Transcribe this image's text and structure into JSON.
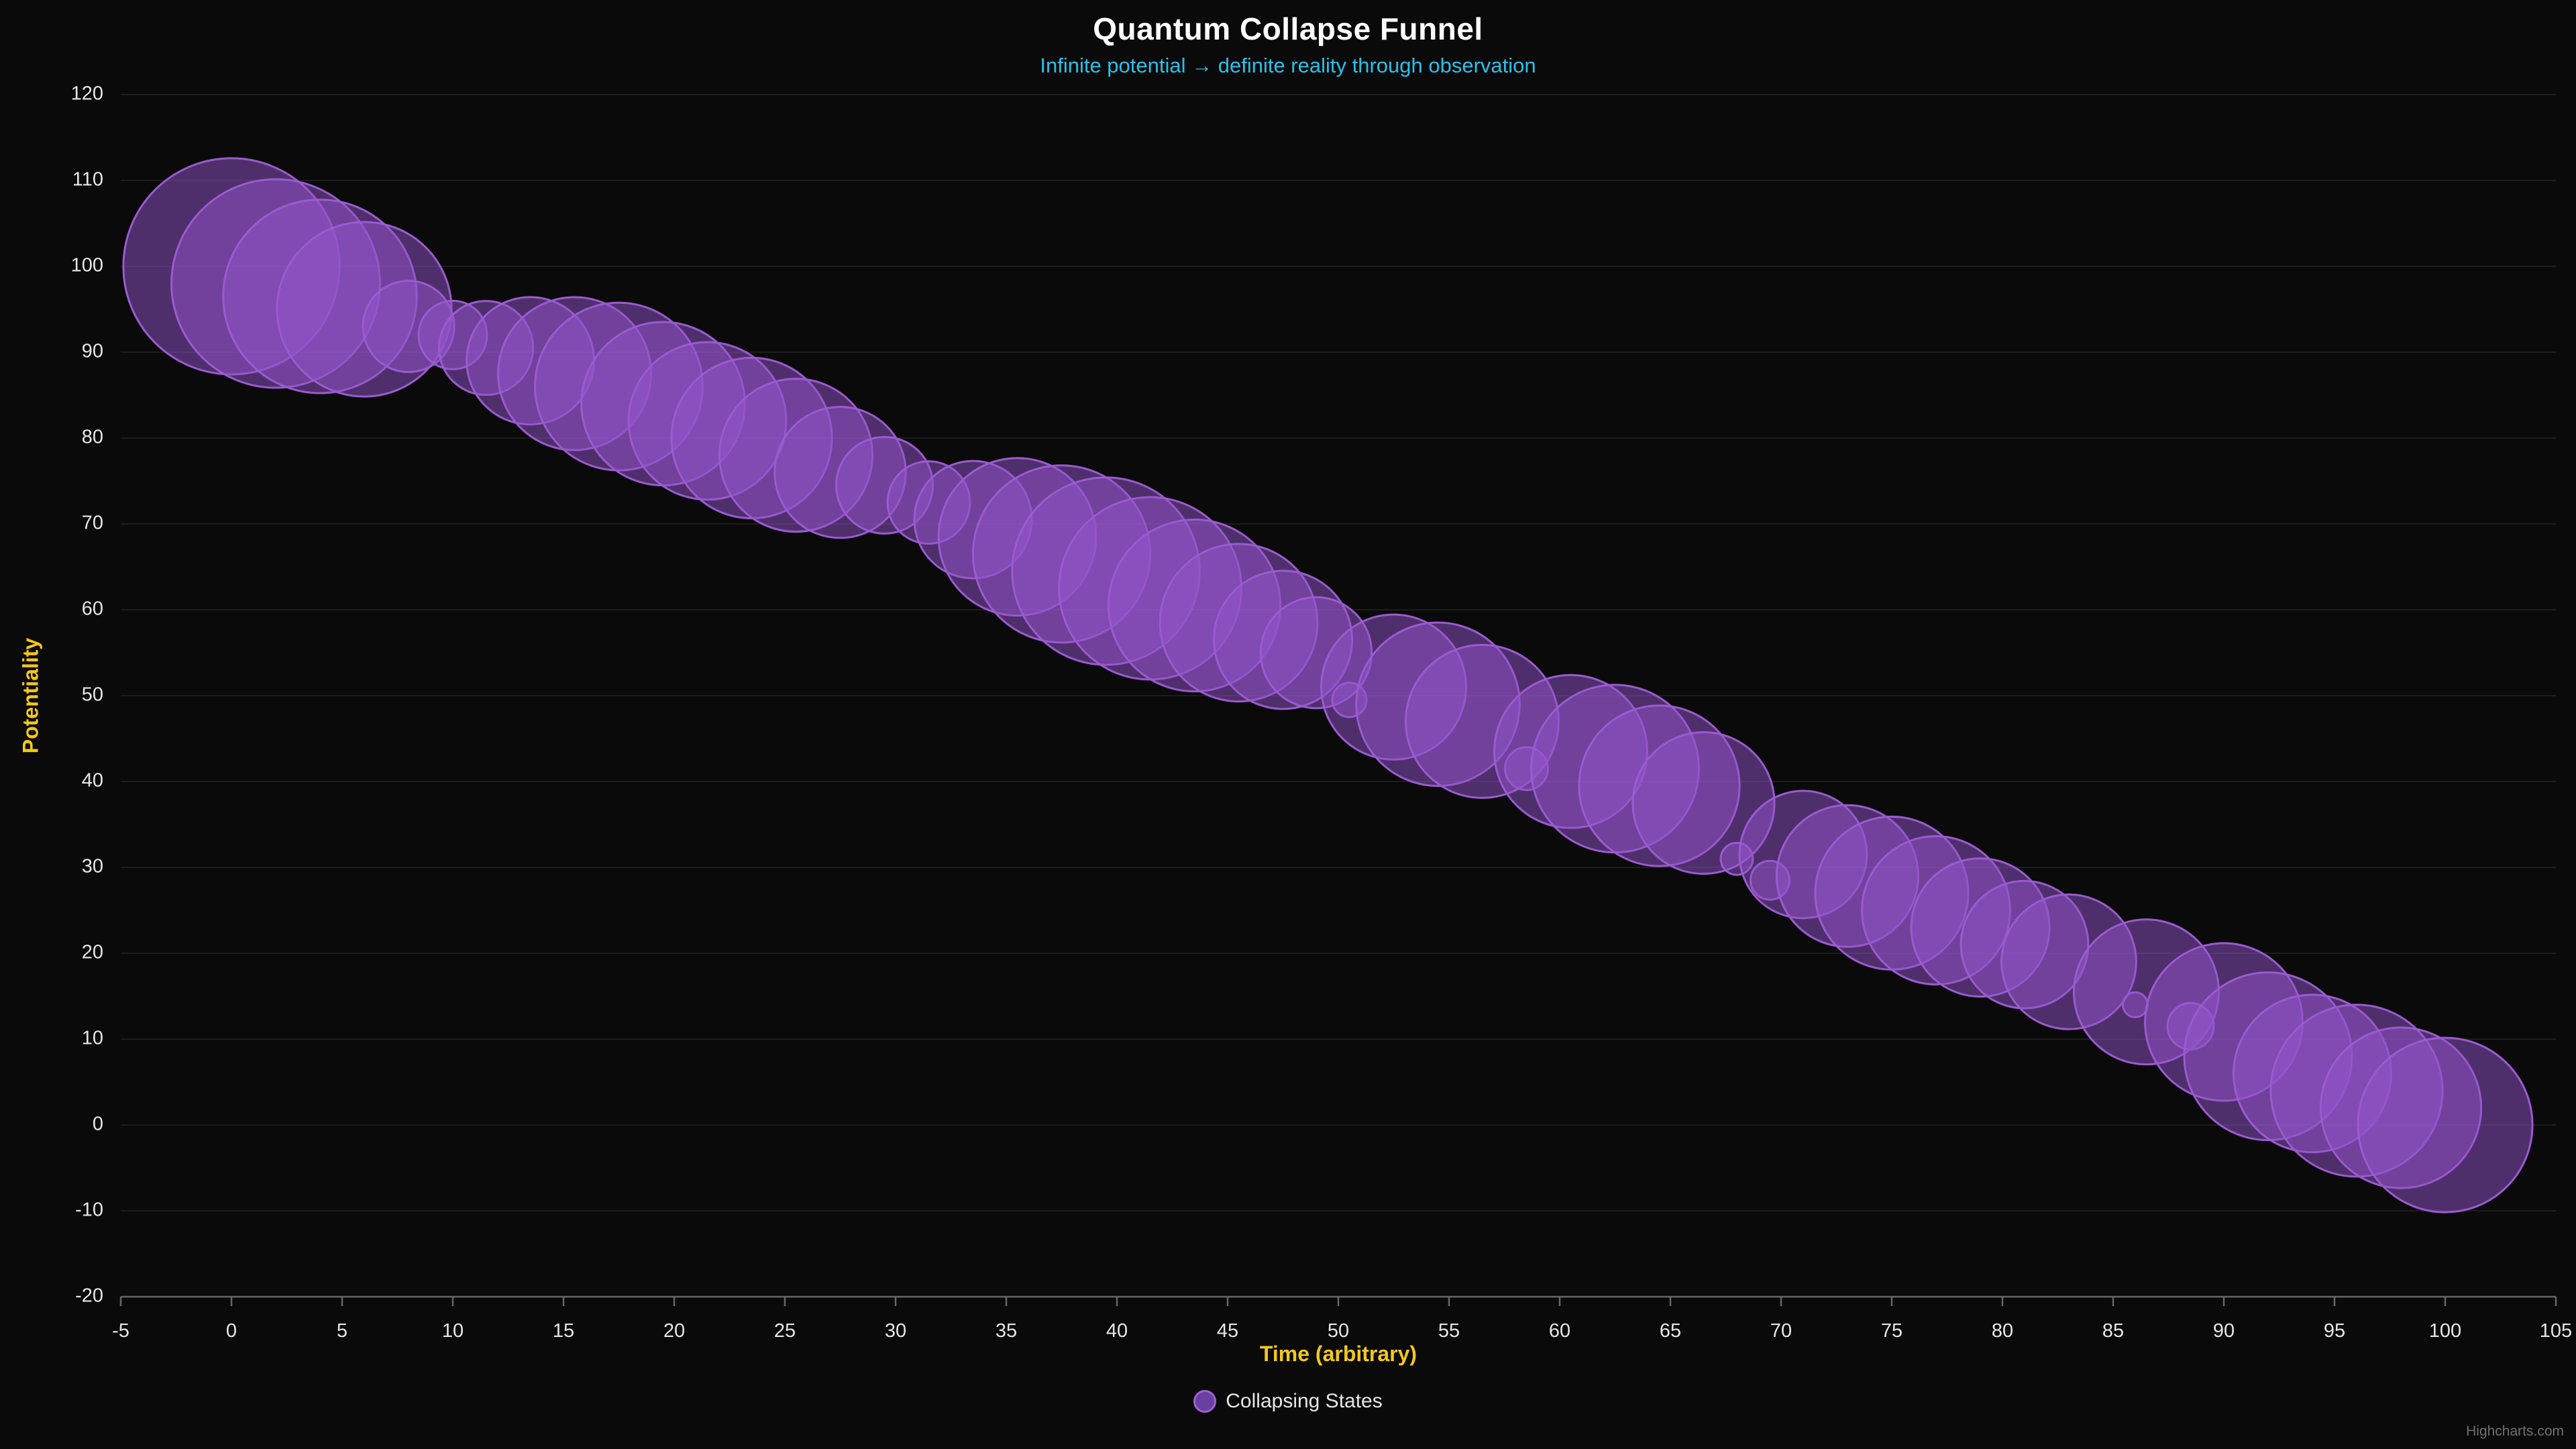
{
  "chart": {
    "title": "Quantum Collapse Funnel",
    "subtitle": "Infinite potential → definite reality through observation",
    "x_axis_title": "Time (arbitrary)",
    "y_axis_title": "Potentiality",
    "legend_label": "Collapsing States",
    "credits": "Highcharts.com",
    "colors": {
      "background": "#0a0a0a",
      "title": "#ffffff",
      "subtitle": "#2ac1e8",
      "axis_title": "#f4c81a",
      "tick_label": "#e6e6e6",
      "grid_line": "#1d1d1d",
      "axis_line": "#666666",
      "bubble_fill": "rgba(148,84,204,0.5)",
      "bubble_stroke": "#9a5ad0",
      "legend_marker_fill": "#6b3f9e",
      "legend_marker_stroke": "#9c61d6",
      "legend_text": "#e6e6e6",
      "credits": "#6f6f6f"
    }
  },
  "chart_data": {
    "type": "bubble",
    "title": "Quantum Collapse Funnel",
    "subtitle": "Infinite potential → definite reality through observation",
    "xlabel": "Time (arbitrary)",
    "ylabel": "Potentiality",
    "xlim": [
      -5,
      105
    ],
    "ylim": [
      -20,
      120
    ],
    "x_tick_interval": 5,
    "y_tick_interval": 10,
    "grid": "horizontal-only",
    "legend_position": "bottom-center",
    "bubble_size_mapping": {
      "z_range": [
        0,
        100
      ],
      "min_px_radius": 10,
      "max_px_radius": 165
    },
    "series": [
      {
        "name": "Collapsing States",
        "color": "#9455CC",
        "points": [
          [
            0,
            100,
            95
          ],
          [
            2,
            98,
            88
          ],
          [
            4,
            96.5,
            75
          ],
          [
            6,
            95,
            60
          ],
          [
            8,
            93,
            14
          ],
          [
            10,
            92,
            7
          ],
          [
            11.5,
            90.5,
            15
          ],
          [
            13.5,
            89,
            30
          ],
          [
            15.5,
            87.5,
            45
          ],
          [
            17.5,
            86,
            55
          ],
          [
            19.5,
            84,
            52
          ],
          [
            21.5,
            82,
            48
          ],
          [
            23.5,
            80,
            50
          ],
          [
            25.5,
            78,
            45
          ],
          [
            27.5,
            76,
            32
          ],
          [
            29.5,
            74.5,
            16
          ],
          [
            31.5,
            72.5,
            11
          ],
          [
            33.5,
            70.5,
            25
          ],
          [
            35.5,
            68.5,
            48
          ],
          [
            37.5,
            66.5,
            62
          ],
          [
            39.5,
            64.5,
            70
          ],
          [
            41.5,
            62.5,
            66
          ],
          [
            43.5,
            60.5,
            58
          ],
          [
            45.5,
            58.5,
            48
          ],
          [
            47.5,
            56.5,
            36
          ],
          [
            49,
            55,
            22
          ],
          [
            50.5,
            49.5,
            1
          ],
          [
            52.5,
            51,
            40
          ],
          [
            54.5,
            49,
            52
          ],
          [
            56.5,
            47,
            45
          ],
          [
            58.5,
            41.5,
            2
          ],
          [
            60.5,
            43.5,
            45
          ],
          [
            62.5,
            41.5,
            55
          ],
          [
            64.5,
            39.5,
            50
          ],
          [
            66.5,
            37.5,
            38
          ],
          [
            68,
            31,
            0.8
          ],
          [
            69.5,
            28.5,
            1.5
          ],
          [
            71,
            31.5,
            30
          ],
          [
            73,
            29,
            38
          ],
          [
            75,
            27,
            45
          ],
          [
            77,
            25,
            42
          ],
          [
            79,
            23,
            36
          ],
          [
            81,
            21,
            30
          ],
          [
            83,
            19,
            34
          ],
          [
            86,
            14,
            0.3
          ],
          [
            86.5,
            15.5,
            40
          ],
          [
            88.5,
            11.5,
            2.5
          ],
          [
            90,
            12,
            48
          ],
          [
            92,
            8,
            55
          ],
          [
            94,
            6,
            48
          ],
          [
            96,
            4,
            58
          ],
          [
            98,
            2,
            50
          ],
          [
            100,
            0,
            60
          ]
        ]
      }
    ]
  }
}
